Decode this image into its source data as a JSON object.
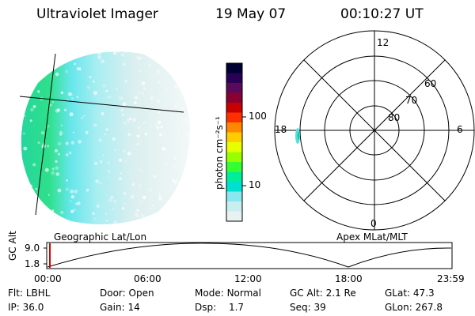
{
  "header": {
    "instrument": "Ultraviolet Imager",
    "date": "19 May 07",
    "time": "00:10:27 UT"
  },
  "geo_panel": {
    "label": "Geographic Lat/Lon"
  },
  "colorbar": {
    "unit_label": "photon cm⁻²s⁻¹",
    "ticks": [
      "100",
      "10"
    ],
    "colors": [
      "#000033",
      "#2a0055",
      "#5a0a5a",
      "#8a0030",
      "#c80000",
      "#ff3000",
      "#ff8800",
      "#ffcc00",
      "#e6ff00",
      "#99ff00",
      "#33ff33",
      "#00ee99",
      "#00e0d0",
      "#88e8f0",
      "#c8eef0",
      "#e8f2f2"
    ]
  },
  "polar_plot": {
    "label": "Apex MLat/MLT",
    "mlt_labels": {
      "top": "12",
      "left": "18",
      "right": "6",
      "bottom": "0"
    },
    "lat_labels": [
      "60",
      "70",
      "80"
    ]
  },
  "orbit_plot": {
    "ylabel": "GC Alt",
    "y_ticks": [
      "9.0",
      "1.8"
    ],
    "x_ticks": [
      "00:00",
      "06:00",
      "12:00",
      "18:00",
      "23:59"
    ],
    "marker_color": "#dd0000"
  },
  "status": {
    "row1": [
      {
        "label": "Flt:",
        "value": "LBHL"
      },
      {
        "label": "Door:",
        "value": "Open"
      },
      {
        "label": "Mode:",
        "value": "Normal"
      },
      {
        "label": "GC Alt:",
        "value": "2.1 Re"
      },
      {
        "label": "GLat:",
        "value": "47.3"
      }
    ],
    "row2": [
      {
        "label": "IP:",
        "value": "36.0"
      },
      {
        "label": "Gain:",
        "value": "14"
      },
      {
        "label": "Dsp:",
        "value": "1.7"
      },
      {
        "label": "Seq:",
        "value": "39"
      },
      {
        "label": "GLon:",
        "value": "267.8"
      }
    ]
  }
}
